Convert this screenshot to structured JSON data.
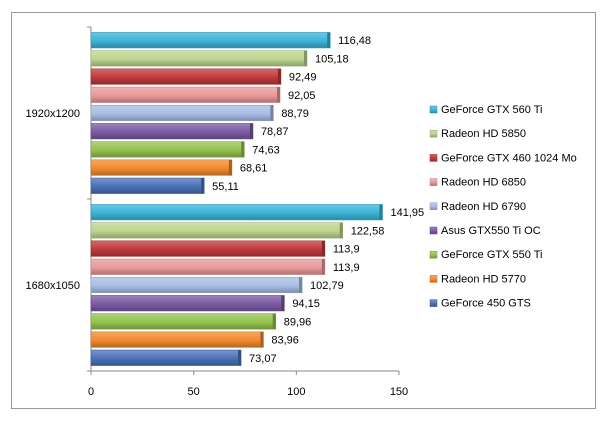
{
  "chart_data": {
    "type": "bar",
    "orientation": "horizontal",
    "title": "",
    "xlabel": "",
    "ylabel": "",
    "categories": [
      "1920x1200",
      "1680x1050"
    ],
    "xlim": [
      0,
      150
    ],
    "x_ticks": [
      0,
      50,
      100,
      150
    ],
    "grid": false,
    "legend_position": "right",
    "series": [
      {
        "name": "GeForce 450 GTS",
        "color": "#4a72b8",
        "values": [
          55.11,
          73.07
        ],
        "labels": [
          "55,11",
          "73,07"
        ]
      },
      {
        "name": "Radeon HD 5770",
        "color": "#f28a2e",
        "values": [
          68.61,
          83.96
        ],
        "labels": [
          "68,61",
          "83,96"
        ]
      },
      {
        "name": "GeForce GTX 550 Ti",
        "color": "#94c24d",
        "values": [
          74.63,
          89.96
        ],
        "labels": [
          "74,63",
          "89,96"
        ]
      },
      {
        "name": "Asus GTX550 Ti OC",
        "color": "#7b59a3",
        "values": [
          78.87,
          94.15
        ],
        "labels": [
          "78,87",
          "94,15"
        ]
      },
      {
        "name": "Radeon HD 6790",
        "color": "#a8bde6",
        "values": [
          88.79,
          102.79
        ],
        "labels": [
          "88,79",
          "102,79"
        ]
      },
      {
        "name": "Radeon HD 6850",
        "color": "#e99a9a",
        "values": [
          92.05,
          113.9
        ],
        "labels": [
          "92,05",
          "113,9"
        ]
      },
      {
        "name": "GeForce GTX 460 1024 Mo",
        "color": "#c0393b",
        "values": [
          92.49,
          113.9
        ],
        "labels": [
          "92,49",
          "113,9"
        ]
      },
      {
        "name": "Radeon HD 5850",
        "color": "#bcd58f",
        "values": [
          105.18,
          122.58
        ],
        "labels": [
          "105,18",
          "122,58"
        ]
      },
      {
        "name": "GeForce GTX 560 Ti",
        "color": "#3bb4d8",
        "values": [
          116.48,
          141.95
        ],
        "labels": [
          "116,48",
          "141,95"
        ]
      }
    ]
  }
}
